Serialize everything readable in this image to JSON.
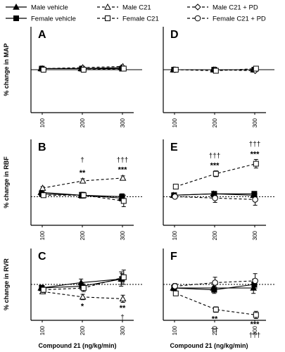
{
  "legend": [
    {
      "key": "mv",
      "label": "Male vehicle",
      "marker": "triangle",
      "fill": "#000000",
      "dash": "solid"
    },
    {
      "key": "fv",
      "label": "Female vehicle",
      "marker": "square",
      "fill": "#000000",
      "dash": "solid"
    },
    {
      "key": "mc",
      "label": "Male C21",
      "marker": "triangle",
      "fill": "#ffffff",
      "dash": "dashed"
    },
    {
      "key": "fc",
      "label": "Female C21",
      "marker": "square",
      "fill": "#ffffff",
      "dash": "dashed"
    },
    {
      "key": "mpd",
      "label": "Male C21 + PD",
      "marker": "diamond",
      "fill": "#ffffff",
      "dash": "dashed"
    },
    {
      "key": "fpd",
      "label": "Female C21 + PD",
      "marker": "circle",
      "fill": "#ffffff",
      "dash": "dashed"
    }
  ],
  "chart_data": [
    {
      "type": "line",
      "panel": "A",
      "ylabel": "% change in MAP",
      "ylim": [
        -40,
        40
      ],
      "x": [
        "100",
        "200",
        "300"
      ],
      "series": [
        {
          "key": "mv",
          "values": [
            1,
            1,
            2
          ],
          "err": [
            0.5,
            0.5,
            0.5
          ]
        },
        {
          "key": "fv",
          "values": [
            1,
            1,
            1
          ],
          "err": [
            0.5,
            0.5,
            0.5
          ]
        },
        {
          "key": "mc",
          "values": [
            1,
            2,
            3
          ],
          "err": [
            0.5,
            0.5,
            0.5
          ]
        },
        {
          "key": "fc",
          "values": [
            0,
            0,
            1
          ],
          "err": [
            0.5,
            0.5,
            0.5
          ]
        }
      ],
      "annotations": []
    },
    {
      "type": "line",
      "panel": "B",
      "ylabel": "% change in RBF",
      "ylim": [
        -20,
        40
      ],
      "x": [
        "100",
        "200",
        "300"
      ],
      "series": [
        {
          "key": "mv",
          "values": [
            3,
            1,
            -1
          ],
          "err": [
            1,
            2,
            2
          ]
        },
        {
          "key": "fv",
          "values": [
            2,
            1,
            0
          ],
          "err": [
            1,
            2,
            2
          ]
        },
        {
          "key": "mc",
          "values": [
            6,
            11,
            13
          ],
          "err": [
            1,
            1.5,
            1.5
          ]
        },
        {
          "key": "fc",
          "values": [
            1,
            1,
            -3
          ],
          "err": [
            1,
            2,
            4
          ]
        }
      ],
      "annotations": [
        {
          "x": "200",
          "text": "**",
          "y": 17
        },
        {
          "x": "200",
          "text": "†",
          "y": 26
        },
        {
          "x": "300",
          "text": "***",
          "y": 19
        },
        {
          "x": "300",
          "text": "†††",
          "y": 26
        }
      ]
    },
    {
      "type": "line",
      "panel": "C",
      "ylabel": "% change in RVR",
      "ylim": [
        -20,
        20
      ],
      "x": [
        "100",
        "200",
        "300"
      ],
      "series": [
        {
          "key": "mv",
          "values": [
            -2,
            1,
            3
          ],
          "err": [
            1.5,
            2,
            4
          ]
        },
        {
          "key": "fv",
          "values": [
            -2,
            -1,
            3
          ],
          "err": [
            1.5,
            2,
            3
          ]
        },
        {
          "key": "mc",
          "values": [
            -4,
            -7,
            -8
          ],
          "err": [
            1,
            1.5,
            2
          ]
        },
        {
          "key": "fc",
          "values": [
            -3,
            -2,
            4
          ],
          "err": [
            1.5,
            2,
            4
          ]
        }
      ],
      "annotations": [
        {
          "x": "200",
          "text": "*",
          "y": -12
        },
        {
          "x": "300",
          "text": "**",
          "y": -13
        },
        {
          "x": "300",
          "text": "†",
          "y": -18
        }
      ]
    },
    {
      "type": "line",
      "panel": "D",
      "ylim": [
        -40,
        40
      ],
      "x": [
        "100",
        "200",
        "300"
      ],
      "series": [
        {
          "key": "mv",
          "values": [
            0,
            0,
            0
          ],
          "err": [
            0.5,
            0.5,
            0.5
          ]
        },
        {
          "key": "fv",
          "values": [
            0,
            0,
            0
          ],
          "err": [
            0.5,
            0.5,
            0.5
          ]
        },
        {
          "key": "mpd",
          "values": [
            0,
            0,
            -1
          ],
          "err": [
            0.5,
            0.5,
            0.5
          ]
        },
        {
          "key": "fc",
          "values": [
            0,
            -1,
            1
          ],
          "err": [
            0.5,
            0.5,
            0.5
          ]
        }
      ],
      "annotations": []
    },
    {
      "type": "line",
      "panel": "E",
      "ylim": [
        -20,
        40
      ],
      "x": [
        "100",
        "200",
        "300"
      ],
      "series": [
        {
          "key": "mv",
          "values": [
            1,
            2,
            1
          ],
          "err": [
            1,
            1.5,
            1.5
          ]
        },
        {
          "key": "fv",
          "values": [
            1,
            2,
            2
          ],
          "err": [
            1,
            1.5,
            1.5
          ]
        },
        {
          "key": "fpd",
          "values": [
            0,
            -1,
            -2
          ],
          "err": [
            1,
            3,
            4
          ]
        },
        {
          "key": "fc",
          "values": [
            7,
            16,
            23
          ],
          "err": [
            1,
            2,
            3
          ]
        }
      ],
      "annotations": [
        {
          "x": "200",
          "text": "***",
          "y": 22
        },
        {
          "x": "200",
          "text": "†††",
          "y": 29
        },
        {
          "x": "300",
          "text": "***",
          "y": 30
        },
        {
          "x": "300",
          "text": "†††",
          "y": 37
        }
      ]
    },
    {
      "type": "line",
      "panel": "F",
      "ylim": [
        -20,
        20
      ],
      "x": [
        "100",
        "200",
        "300"
      ],
      "series": [
        {
          "key": "mv",
          "values": [
            -2,
            -2,
            -2
          ],
          "err": [
            1.5,
            2,
            3
          ]
        },
        {
          "key": "fv",
          "values": [
            -2,
            -3,
            0
          ],
          "err": [
            1.5,
            2,
            3
          ]
        },
        {
          "key": "fpd",
          "values": [
            -1,
            1,
            2
          ],
          "err": [
            1.5,
            3,
            4
          ]
        },
        {
          "key": "fc",
          "values": [
            -5,
            -14,
            -17
          ],
          "err": [
            1,
            1.5,
            2
          ]
        }
      ],
      "annotations": [
        {
          "x": "200",
          "text": "**",
          "y": -19
        },
        {
          "x": "200",
          "text": "††",
          "y": -25
        },
        {
          "x": "300",
          "text": "***",
          "y": -22
        },
        {
          "x": "300",
          "text": "†††",
          "y": -28
        }
      ]
    }
  ],
  "xlabel": "Compound 21 (ng/kg/min)"
}
